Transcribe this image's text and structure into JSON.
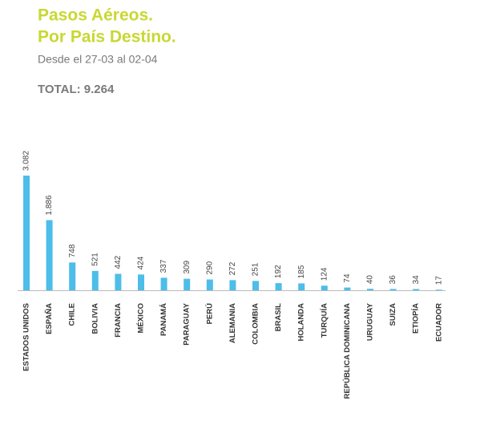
{
  "chart_data": {
    "type": "bar",
    "title": [
      "Pasos Aéreos.",
      "Por País Destino."
    ],
    "subtitle": "Desde el 27-03 al 02-04",
    "total": "TOTAL: 9.264",
    "categories": [
      "ESTADOS UNIDOS",
      "ESPAÑA",
      "CHILE",
      "BOLIVIA",
      "FRANCIA",
      "MÉXICO",
      "PANAMÁ",
      "PARAGUAY",
      "PERÚ",
      "ALEMANIA",
      "COLOMBIA",
      "BRASIL",
      "HOLANDA",
      "TURQUÍA",
      "REPÚBLICA DOMINICANA",
      "URUGUAY",
      "SUIZA",
      "ETIOPÍA",
      "ECUADOR"
    ],
    "values": [
      3082,
      1886,
      748,
      521,
      442,
      424,
      337,
      309,
      290,
      272,
      251,
      192,
      185,
      124,
      74,
      40,
      36,
      34,
      17
    ],
    "value_labels": [
      "3.082",
      "1.886",
      "748",
      "521",
      "442",
      "424",
      "337",
      "309",
      "290",
      "272",
      "251",
      "192",
      "185",
      "124",
      "74",
      "40",
      "36",
      "34",
      "17"
    ],
    "color": "#4dbde9"
  }
}
